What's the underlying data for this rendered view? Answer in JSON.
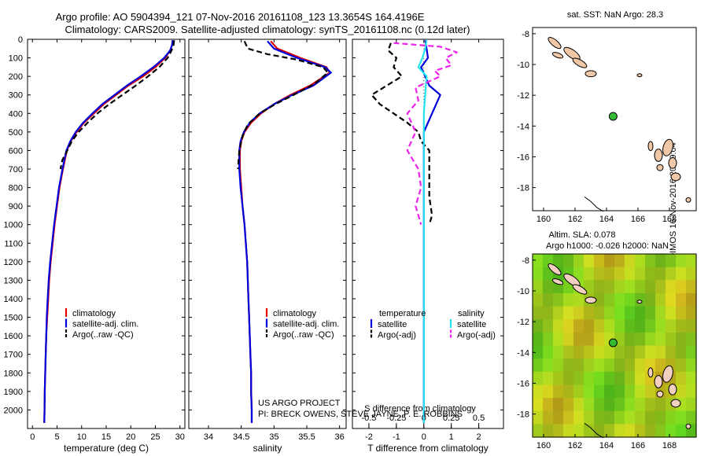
{
  "title_line1": "Argo profile: AO 5904394_121 07-Nov-2016 20161108_123 13.3654S 164.4196E",
  "title_line2": "Climatology: CARS2009. Satellite-adjusted climatology: synTS_20161108.nc (0.12d later)",
  "side_text": "©IMOS 16-Nov-2016 20:39:04",
  "project": {
    "line1": "US ARGO PROJECT",
    "line2": "PI: BRECK OWENS, STEVE JAYNE, P. E. ROBBINS"
  },
  "colors": {
    "climatology": "#e00000",
    "satellite": "#0000dd",
    "argo": "#000000",
    "satellite_salinity": "#22e4f0",
    "argo_salinity": "#ee22ee",
    "land": "#f0c8a8",
    "float_marker": "#33bb33"
  },
  "chart_data": [
    {
      "id": "temperature",
      "type": "line",
      "xlabel": "temperature (deg C)",
      "ylabel": "",
      "xlim": [
        -1,
        31
      ],
      "ylim": [
        2100,
        0
      ],
      "xticks": [
        0,
        5,
        10,
        15,
        20,
        25,
        30
      ],
      "yticks": [
        0,
        100,
        200,
        300,
        400,
        500,
        600,
        700,
        800,
        900,
        1000,
        1100,
        1200,
        1300,
        1400,
        1500,
        1600,
        1700,
        1800,
        1900,
        2000
      ],
      "legend": [
        "climatology",
        "satellite-adj. clim.",
        "Argo(..raw -QC)"
      ],
      "series": [
        {
          "name": "climatology",
          "color": "#e00000",
          "style": "solid",
          "points": [
            [
              28.5,
              5
            ],
            [
              28.4,
              30
            ],
            [
              28.0,
              60
            ],
            [
              27.0,
              100
            ],
            [
              25.0,
              150
            ],
            [
              22.5,
              200
            ],
            [
              19.5,
              250
            ],
            [
              17.0,
              300
            ],
            [
              14.5,
              350
            ],
            [
              12.5,
              400
            ],
            [
              10.5,
              450
            ],
            [
              9.0,
              500
            ],
            [
              7.8,
              550
            ],
            [
              7.0,
              600
            ],
            [
              6.2,
              700
            ],
            [
              5.5,
              800
            ],
            [
              5.0,
              900
            ],
            [
              4.5,
              1000
            ],
            [
              4.1,
              1100
            ],
            [
              3.7,
              1200
            ],
            [
              3.4,
              1300
            ],
            [
              3.2,
              1400
            ],
            [
              3.0,
              1500
            ],
            [
              2.8,
              1600
            ],
            [
              2.7,
              1700
            ],
            [
              2.6,
              1800
            ],
            [
              2.5,
              1900
            ],
            [
              2.45,
              2000
            ],
            [
              2.4,
              2070
            ]
          ]
        },
        {
          "name": "satellite-adj. clim.",
          "color": "#0000dd",
          "style": "solid",
          "points": [
            [
              28.5,
              5
            ],
            [
              28.4,
              30
            ],
            [
              28.0,
              60
            ],
            [
              26.8,
              100
            ],
            [
              24.6,
              150
            ],
            [
              22.0,
              200
            ],
            [
              19.2,
              250
            ],
            [
              16.7,
              300
            ],
            [
              14.2,
              350
            ],
            [
              12.2,
              400
            ],
            [
              10.3,
              450
            ],
            [
              8.8,
              500
            ],
            [
              7.7,
              550
            ],
            [
              6.9,
              600
            ],
            [
              6.1,
              700
            ],
            [
              5.4,
              800
            ],
            [
              4.9,
              900
            ],
            [
              4.4,
              1000
            ],
            [
              4.0,
              1100
            ],
            [
              3.6,
              1200
            ],
            [
              3.3,
              1300
            ],
            [
              3.1,
              1400
            ],
            [
              2.9,
              1500
            ],
            [
              2.8,
              1600
            ],
            [
              2.7,
              1700
            ],
            [
              2.6,
              1800
            ],
            [
              2.5,
              1900
            ],
            [
              2.45,
              2000
            ],
            [
              2.4,
              2070
            ]
          ]
        },
        {
          "name": "Argo(..raw -QC)",
          "color": "#000000",
          "style": "dashed",
          "points": [
            [
              28.8,
              5
            ],
            [
              28.7,
              30
            ],
            [
              28.3,
              60
            ],
            [
              27.5,
              100
            ],
            [
              25.8,
              150
            ],
            [
              23.5,
              200
            ],
            [
              21.0,
              250
            ],
            [
              18.3,
              300
            ],
            [
              15.6,
              350
            ],
            [
              13.2,
              400
            ],
            [
              11.2,
              450
            ],
            [
              9.4,
              500
            ],
            [
              8.0,
              550
            ],
            [
              7.1,
              600
            ],
            [
              6.1,
              650
            ],
            [
              5.7,
              700
            ]
          ]
        }
      ]
    },
    {
      "id": "salinity",
      "type": "line",
      "xlabel": "salinity",
      "ylabel": "",
      "xlim": [
        33.7,
        36.1
      ],
      "ylim": [
        2100,
        0
      ],
      "xticks": [
        34,
        34.5,
        35,
        35.5,
        36
      ],
      "xticklabels": [
        "34",
        "34.5",
        "35",
        "35.5",
        "36"
      ],
      "legend": [
        "climatology",
        "satellite-adj. clim.",
        "Argo(..raw -QC)"
      ],
      "series": [
        {
          "name": "climatology",
          "color": "#e00000",
          "style": "solid",
          "points": [
            [
              34.95,
              10
            ],
            [
              35.05,
              50
            ],
            [
              35.4,
              100
            ],
            [
              35.8,
              150
            ],
            [
              35.85,
              180
            ],
            [
              35.55,
              250
            ],
            [
              35.25,
              300
            ],
            [
              35.0,
              350
            ],
            [
              34.8,
              400
            ],
            [
              34.65,
              450
            ],
            [
              34.55,
              500
            ],
            [
              34.5,
              550
            ],
            [
              34.48,
              600
            ],
            [
              34.48,
              700
            ],
            [
              34.5,
              800
            ],
            [
              34.52,
              900
            ],
            [
              34.55,
              1000
            ],
            [
              34.57,
              1100
            ],
            [
              34.59,
              1200
            ],
            [
              34.6,
              1300
            ],
            [
              34.61,
              1400
            ],
            [
              34.62,
              1500
            ],
            [
              34.63,
              1600
            ],
            [
              34.64,
              1700
            ],
            [
              34.65,
              1800
            ],
            [
              34.65,
              1900
            ],
            [
              34.66,
              2000
            ],
            [
              34.66,
              2070
            ]
          ]
        },
        {
          "name": "satellite-adj. clim.",
          "color": "#0000dd",
          "style": "solid",
          "points": [
            [
              34.9,
              10
            ],
            [
              35.0,
              50
            ],
            [
              35.35,
              100
            ],
            [
              35.78,
              150
            ],
            [
              35.87,
              180
            ],
            [
              35.6,
              250
            ],
            [
              35.28,
              300
            ],
            [
              35.0,
              350
            ],
            [
              34.78,
              400
            ],
            [
              34.63,
              450
            ],
            [
              34.54,
              500
            ],
            [
              34.49,
              550
            ],
            [
              34.47,
              600
            ],
            [
              34.47,
              700
            ],
            [
              34.49,
              800
            ],
            [
              34.52,
              900
            ],
            [
              34.55,
              1000
            ],
            [
              34.57,
              1100
            ],
            [
              34.59,
              1200
            ],
            [
              34.6,
              1300
            ],
            [
              34.61,
              1400
            ],
            [
              34.62,
              1500
            ],
            [
              34.63,
              1600
            ],
            [
              34.64,
              1700
            ],
            [
              34.65,
              1800
            ],
            [
              34.65,
              1900
            ],
            [
              34.66,
              2000
            ],
            [
              34.66,
              2070
            ]
          ]
        },
        {
          "name": "Argo(..raw -QC)",
          "color": "#000000",
          "style": "dashed",
          "points": [
            [
              34.55,
              10
            ],
            [
              34.6,
              50
            ],
            [
              34.9,
              80
            ],
            [
              35.35,
              110
            ],
            [
              35.75,
              150
            ],
            [
              35.82,
              180
            ],
            [
              35.62,
              240
            ],
            [
              35.3,
              300
            ],
            [
              35.02,
              350
            ],
            [
              34.78,
              400
            ],
            [
              34.6,
              460
            ],
            [
              34.52,
              520
            ],
            [
              34.47,
              600
            ],
            [
              34.45,
              700
            ]
          ]
        }
      ]
    },
    {
      "id": "differences",
      "type": "line",
      "xlabel": "T difference from climatology",
      "toplabel": "S difference from climatology",
      "xlim": [
        -2.6,
        2.9
      ],
      "ylim": [
        2100,
        0
      ],
      "xticks": [
        -2,
        -1,
        0,
        1,
        2
      ],
      "topticks": [
        -0.5,
        -0.25,
        0,
        0.25,
        0.5
      ],
      "legend_headers": [
        "temperature",
        "salinity"
      ],
      "legend": [
        "satellite",
        "Argo(-adj)",
        "satellite",
        "Argo(-adj)"
      ],
      "series": [
        {
          "name": "satellite",
          "color": "#0000dd",
          "style": "solid",
          "points": [
            [
              0.05,
              5
            ],
            [
              0.1,
              50
            ],
            [
              0.15,
              100
            ],
            [
              -0.1,
              150
            ],
            [
              0.2,
              250
            ],
            [
              0.6,
              300
            ],
            [
              0.3,
              400
            ],
            [
              0.0,
              500
            ],
            [
              0.0,
              2070
            ]
          ]
        },
        {
          "name": "Argo(-adj)",
          "color": "#000000",
          "style": "dashed",
          "points": [
            [
              -1.2,
              20
            ],
            [
              -1.3,
              60
            ],
            [
              -1.0,
              100
            ],
            [
              -1.1,
              150
            ],
            [
              -0.8,
              200
            ],
            [
              -1.9,
              300
            ],
            [
              -1.6,
              350
            ],
            [
              -1.1,
              400
            ],
            [
              -0.6,
              450
            ],
            [
              -0.2,
              500
            ],
            [
              -0.1,
              550
            ],
            [
              0.2,
              600
            ],
            [
              0.2,
              700
            ],
            [
              0.2,
              850
            ],
            [
              0.3,
              950
            ],
            [
              0.2,
              1000
            ]
          ]
        },
        {
          "name": "satellite",
          "color": "#22e4f0",
          "style": "solid",
          "points": [
            [
              0.1,
              5
            ],
            [
              0.05,
              50
            ],
            [
              -0.05,
              100
            ],
            [
              -0.2,
              150
            ],
            [
              0.1,
              200
            ],
            [
              0.05,
              300
            ],
            [
              0.0,
              400
            ],
            [
              0.0,
              2070
            ]
          ]
        },
        {
          "name": "Argo(-adj)",
          "color": "#ee22ee",
          "style": "dashed",
          "points": [
            [
              -1.1,
              20
            ],
            [
              0.6,
              40
            ],
            [
              1.2,
              70
            ],
            [
              0.8,
              100
            ],
            [
              1.0,
              140
            ],
            [
              0.4,
              170
            ],
            [
              0.6,
              200
            ],
            [
              -0.3,
              260
            ],
            [
              -0.2,
              330
            ],
            [
              -0.6,
              400
            ],
            [
              -0.3,
              500
            ],
            [
              -0.6,
              600
            ],
            [
              -0.2,
              700
            ],
            [
              -0.1,
              800
            ],
            [
              -0.3,
              900
            ],
            [
              -0.1,
              1000
            ]
          ]
        }
      ]
    },
    {
      "id": "map_sst",
      "type": "scatter",
      "title": "sat. SST: NaN Argo: 28.3",
      "xlim": [
        159.3,
        169.7
      ],
      "ylim": [
        -19.5,
        -7.6
      ],
      "xticks": [
        160,
        162,
        164,
        166,
        168
      ],
      "yticks": [
        -8,
        -10,
        -12,
        -14,
        -16,
        -18
      ],
      "marker": {
        "lon": 164.42,
        "lat": -13.37
      }
    },
    {
      "id": "map_sla",
      "type": "heatmap",
      "title_line1": "Altim. SLA: 0.078",
      "title_line2": "Argo h1000: -0.026 h2000: NaN",
      "xlim": [
        159.3,
        169.7
      ],
      "ylim": [
        -19.5,
        -7.6
      ],
      "xticks": [
        160,
        162,
        164,
        166,
        168
      ],
      "yticks": [
        -8,
        -10,
        -12,
        -14,
        -16,
        -18
      ],
      "marker": {
        "lon": 164.42,
        "lat": -13.37
      }
    }
  ]
}
